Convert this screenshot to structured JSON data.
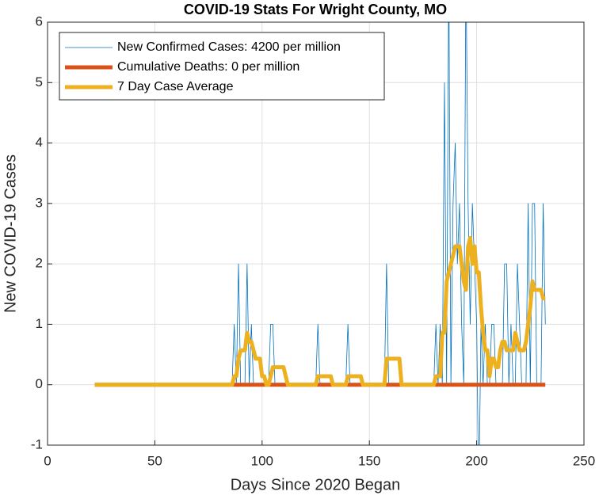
{
  "chart_data": {
    "type": "line",
    "title": "COVID-19 Stats For Wright County, MO",
    "xlabel": "Days Since 2020 Began",
    "ylabel": "New COVID-19 Cases",
    "xlim": [
      0,
      250
    ],
    "xticks": [
      0,
      50,
      100,
      150,
      200,
      250
    ],
    "ylim": [
      -1,
      6
    ],
    "yticks": [
      -1,
      0,
      1,
      2,
      3,
      4,
      5,
      6
    ],
    "grid": true,
    "legend": "upper left",
    "x": [
      22,
      85,
      86,
      87,
      88,
      89,
      90,
      91,
      92,
      93,
      94,
      95,
      96,
      97,
      98,
      99,
      100,
      101,
      102,
      103,
      104,
      105,
      106,
      107,
      108,
      109,
      110,
      111,
      112,
      113,
      114,
      115,
      116,
      117,
      118,
      119,
      120,
      121,
      122,
      123,
      124,
      125,
      126,
      127,
      128,
      129,
      130,
      131,
      132,
      133,
      134,
      135,
      136,
      137,
      138,
      139,
      140,
      141,
      142,
      143,
      144,
      145,
      146,
      147,
      148,
      149,
      150,
      151,
      152,
      153,
      154,
      155,
      156,
      157,
      158,
      159,
      160,
      161,
      162,
      163,
      164,
      165,
      166,
      167,
      168,
      169,
      170,
      171,
      172,
      173,
      174,
      175,
      176,
      177,
      178,
      179,
      180,
      181,
      182,
      183,
      184,
      185,
      186,
      187,
      188,
      189,
      190,
      191,
      192,
      193,
      194,
      195,
      196,
      197,
      198,
      199,
      200,
      201,
      202,
      203,
      204,
      205,
      206,
      207,
      208,
      209,
      210,
      211,
      212,
      213,
      214,
      215,
      216,
      217,
      218,
      219,
      220,
      221,
      222,
      223,
      224,
      225,
      226,
      227,
      228,
      229,
      230,
      231,
      232
    ],
    "series": [
      {
        "name": "New Confirmed Cases: 4200 per million",
        "color": "#0072bd",
        "line_width": 0.8,
        "values": [
          0,
          0,
          0,
          1,
          0,
          2,
          0,
          0,
          0,
          2,
          0,
          1,
          0,
          0,
          0,
          0,
          0,
          0,
          0,
          0,
          1,
          1,
          0,
          0,
          0,
          0,
          0,
          0,
          0,
          0,
          0,
          0,
          0,
          0,
          0,
          0,
          0,
          0,
          0,
          0,
          0,
          0,
          1,
          0,
          0,
          0,
          0,
          0,
          0,
          0,
          0,
          0,
          0,
          0,
          0,
          0,
          1,
          0,
          0,
          0,
          0,
          0,
          0,
          0,
          0,
          0,
          0,
          0,
          0,
          0,
          0,
          0,
          0,
          0,
          2,
          0,
          0,
          0,
          0,
          0,
          0,
          0,
          0,
          0,
          0,
          0,
          0,
          0,
          0,
          0,
          0,
          0,
          0,
          0,
          0,
          0,
          0,
          1,
          0,
          1,
          0,
          5,
          0,
          7,
          0,
          3,
          4,
          2,
          3,
          1,
          0,
          7,
          3,
          1,
          3,
          2,
          1,
          -2,
          1,
          0,
          1,
          0,
          0,
          1,
          1,
          0,
          0,
          0,
          0,
          2,
          2,
          0,
          1,
          0,
          0,
          2,
          1,
          0,
          0,
          0,
          3,
          0,
          3,
          3,
          0,
          0,
          0,
          3,
          1
        ]
      },
      {
        "name": "Cumulative Deaths: 0 per million",
        "color": "#d95319",
        "line_width": 5,
        "values": [
          0,
          0,
          0,
          0,
          0,
          0,
          0,
          0,
          0,
          0,
          0,
          0,
          0,
          0,
          0,
          0,
          0,
          0,
          0,
          0,
          0,
          0,
          0,
          0,
          0,
          0,
          0,
          0,
          0,
          0,
          0,
          0,
          0,
          0,
          0,
          0,
          0,
          0,
          0,
          0,
          0,
          0,
          0,
          0,
          0,
          0,
          0,
          0,
          0,
          0,
          0,
          0,
          0,
          0,
          0,
          0,
          0,
          0,
          0,
          0,
          0,
          0,
          0,
          0,
          0,
          0,
          0,
          0,
          0,
          0,
          0,
          0,
          0,
          0,
          0,
          0,
          0,
          0,
          0,
          0,
          0,
          0,
          0,
          0,
          0,
          0,
          0,
          0,
          0,
          0,
          0,
          0,
          0,
          0,
          0,
          0,
          0,
          0,
          0,
          0,
          0,
          0,
          0,
          0,
          0,
          0,
          0,
          0,
          0,
          0,
          0,
          0,
          0,
          0,
          0,
          0,
          0,
          0,
          0,
          0,
          0,
          0,
          0,
          0,
          0,
          0,
          0,
          0,
          0,
          0,
          0,
          0,
          0,
          0,
          0,
          0,
          0,
          0,
          0,
          0,
          0,
          0,
          0,
          0,
          0,
          0,
          0,
          0,
          0
        ]
      },
      {
        "name": "7 Day Case Average",
        "color": "#edb120",
        "line_width": 5,
        "values": [
          0,
          0,
          0,
          0.14,
          0.14,
          0.43,
          0.57,
          0.57,
          0.57,
          0.86,
          0.71,
          0.71,
          0.57,
          0.43,
          0.43,
          0.43,
          0.14,
          0.14,
          0,
          0,
          0.14,
          0.29,
          0.29,
          0.29,
          0.29,
          0.29,
          0.29,
          0.14,
          0,
          0,
          0,
          0,
          0,
          0,
          0,
          0,
          0,
          0,
          0,
          0,
          0,
          0,
          0.14,
          0.14,
          0.14,
          0.14,
          0.14,
          0.14,
          0.14,
          0,
          0,
          0,
          0,
          0,
          0,
          0,
          0.14,
          0.14,
          0.14,
          0.14,
          0.14,
          0.14,
          0.14,
          0,
          0,
          0,
          0,
          0,
          0,
          0,
          0,
          0,
          0,
          0,
          0.43,
          0.43,
          0.43,
          0.43,
          0.43,
          0.43,
          0.43,
          0,
          0,
          0,
          0,
          0,
          0,
          0,
          0,
          0,
          0,
          0,
          0,
          0,
          0,
          0,
          0,
          0.14,
          0.14,
          0.14,
          0.86,
          0.86,
          1.71,
          1.86,
          2,
          2.14,
          2.29,
          2.29,
          2.29,
          2,
          1.71,
          1.57,
          2.29,
          2.43,
          2,
          2.29,
          1.86,
          1.86,
          1.29,
          0.86,
          0.57,
          0.57,
          0.14,
          0.43,
          0.43,
          0.29,
          0.29,
          0.57,
          0.71,
          0.71,
          0.57,
          0.57,
          0.57,
          0.57,
          0.86,
          0.71,
          0.57,
          0.57,
          0.57,
          0.71,
          1,
          1.29,
          1.71,
          1.57,
          1.57,
          1.57,
          1.57,
          1.43,
          1.43
        ]
      }
    ]
  }
}
